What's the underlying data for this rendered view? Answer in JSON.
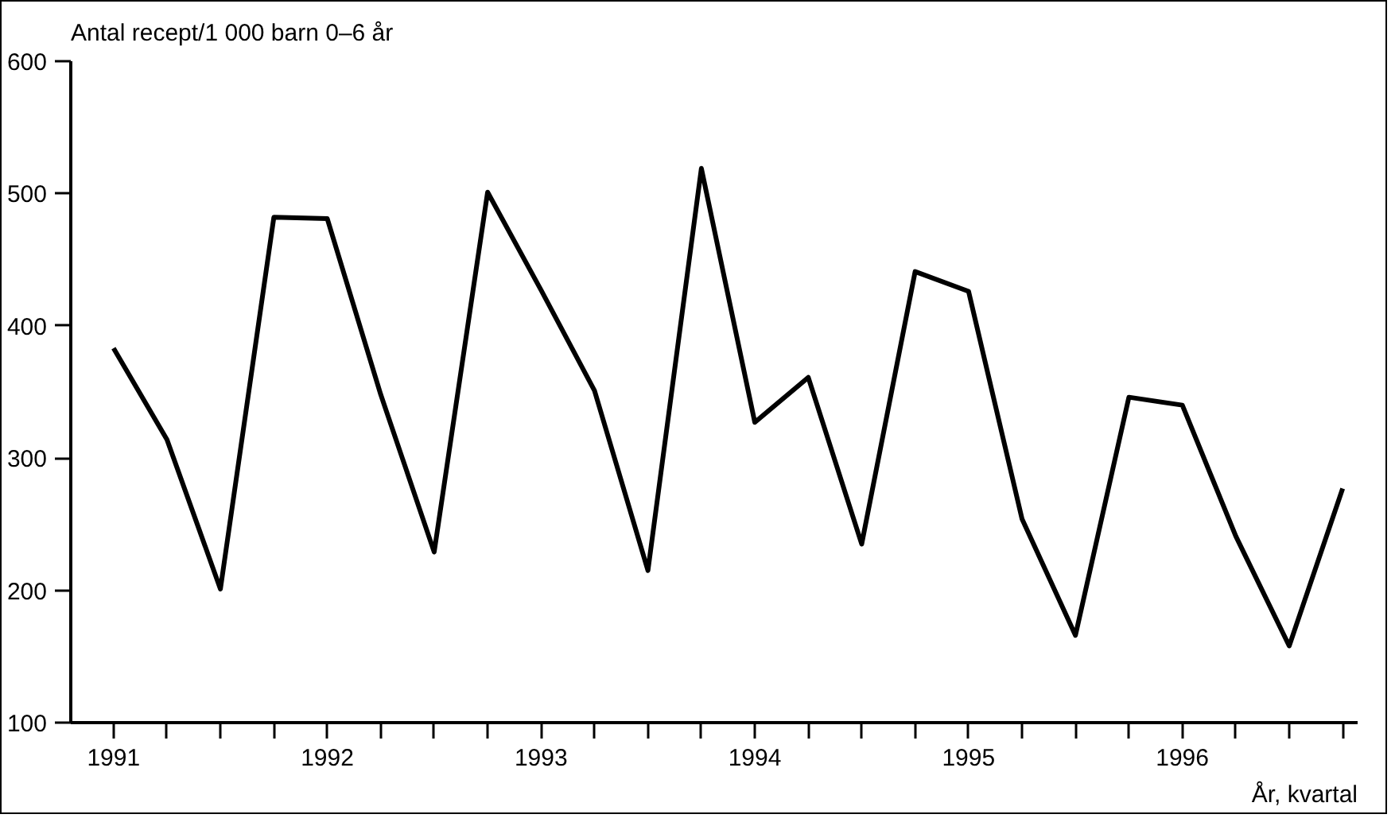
{
  "chart_data": {
    "type": "line",
    "ylabel": "Antal recept/1 000 barn 0–6 år",
    "xlabel": "År, kvartal",
    "x": [
      1991,
      1991.25,
      1991.5,
      1991.75,
      1992,
      1992.25,
      1992.5,
      1992.75,
      1993,
      1993.25,
      1993.5,
      1993.75,
      1994,
      1994.25,
      1994.5,
      1994.75,
      1995,
      1995.25,
      1995.5,
      1995.75,
      1996,
      1996.25,
      1996.5,
      1996.75
    ],
    "series": [
      {
        "color": "#000000",
        "values": [
          383,
          314,
          201,
          482,
          481,
          348,
          229,
          501,
          427,
          351,
          215,
          519,
          327,
          361,
          235,
          441,
          426,
          254,
          166,
          346,
          340,
          241,
          158,
          277
        ]
      }
    ],
    "xlim": [
      1990.8,
      1996.82
    ],
    "xticks": [
      1991,
      {
        "value": 1991.25,
        "label": null
      },
      {
        "value": 1991.5,
        "label": null
      },
      {
        "value": 1991.75,
        "label": null
      },
      1992,
      {
        "value": 1992.25,
        "label": null
      },
      {
        "value": 1992.5,
        "label": null
      },
      {
        "value": 1992.75,
        "label": null
      },
      1993,
      {
        "value": 1993.25,
        "label": null
      },
      {
        "value": 1993.5,
        "label": null
      },
      {
        "value": 1993.75,
        "label": null
      },
      1994,
      {
        "value": 1994.25,
        "label": null
      },
      {
        "value": 1994.5,
        "label": null
      },
      {
        "value": 1994.75,
        "label": null
      },
      1995,
      {
        "value": 1995.25,
        "label": null
      },
      {
        "value": 1995.5,
        "label": null
      },
      {
        "value": 1995.75,
        "label": null
      },
      1996,
      {
        "value": 1996.25,
        "label": null
      },
      {
        "value": 1996.5,
        "label": null
      },
      {
        "value": 1996.75,
        "label": null
      }
    ],
    "ylim": [
      100,
      600
    ],
    "yticks": [
      100,
      200,
      300,
      400,
      500,
      600
    ],
    "grid": false,
    "marker": "none",
    "line_style": "solid"
  }
}
